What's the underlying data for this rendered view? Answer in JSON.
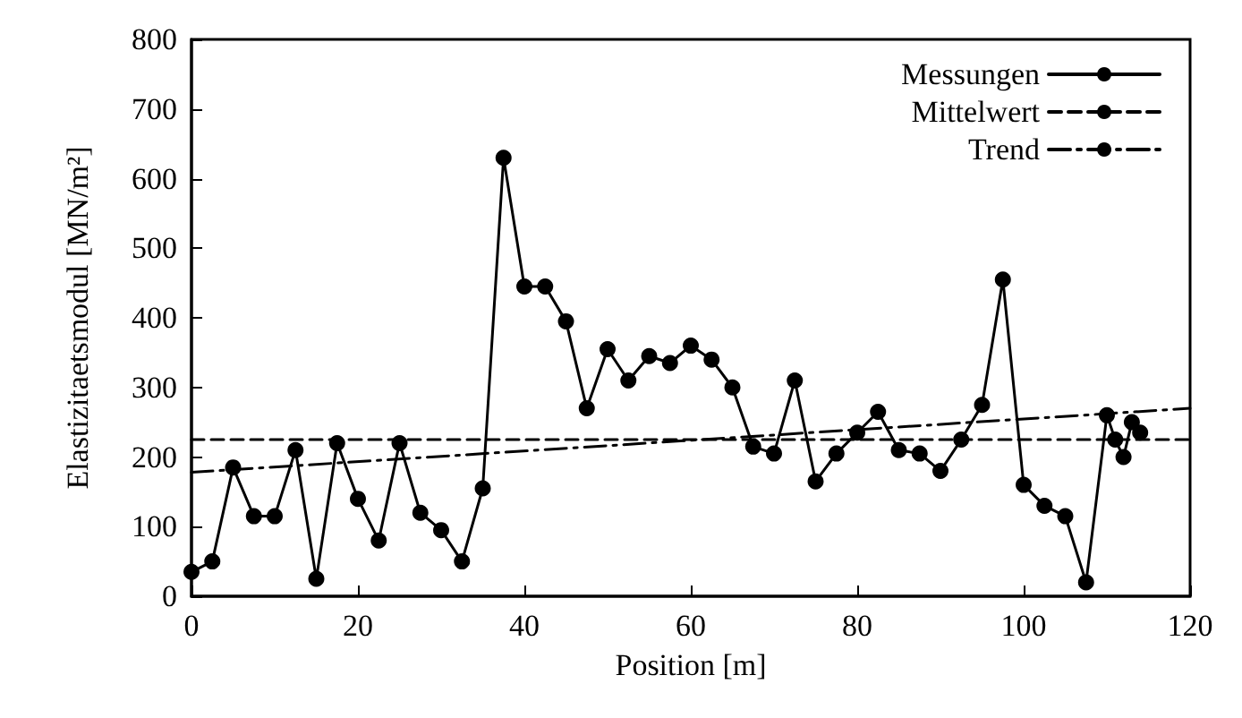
{
  "chart_data": {
    "type": "line",
    "xlabel": "Position [m]",
    "ylabel": "Elastizitaetsmodul [MN/m²]",
    "xlim": [
      0,
      120
    ],
    "xticks": [
      0,
      20,
      40,
      60,
      80,
      100,
      120
    ],
    "ylim": [
      0,
      800
    ],
    "yticks": [
      0,
      100,
      200,
      300,
      400,
      500,
      600,
      700,
      800
    ],
    "grid": false,
    "legend": "top right",
    "series": [
      {
        "name": "Messungen",
        "color": "#000000",
        "marker": "circle",
        "line_style": "solid",
        "x": [
          0,
          2.5,
          5,
          7.5,
          10,
          12.5,
          15,
          17.5,
          20,
          22.5,
          25,
          27.5,
          30,
          32.5,
          35,
          37.5,
          40,
          42.5,
          45,
          47.5,
          50,
          52.5,
          55,
          57.5,
          60,
          62.5,
          65,
          67.5,
          70,
          72.5,
          75,
          77.5,
          80,
          82.5,
          85,
          87.5,
          90,
          92.5,
          95,
          97.5,
          100,
          102.5,
          105,
          107.5,
          110,
          111,
          112,
          113,
          114
        ],
        "values": [
          35,
          50,
          185,
          115,
          115,
          210,
          25,
          220,
          140,
          80,
          220,
          120,
          95,
          50,
          155,
          630,
          445,
          445,
          395,
          270,
          355,
          310,
          345,
          335,
          360,
          340,
          300,
          215,
          205,
          310,
          165,
          205,
          235,
          265,
          210,
          205,
          180,
          225,
          275,
          455,
          160,
          130,
          115,
          20,
          260,
          225,
          200,
          250,
          235
        ]
      },
      {
        "name": "Mittelwert",
        "color": "#000000",
        "marker": "none",
        "line_style": "dashed",
        "x": [
          0,
          120
        ],
        "values": [
          225,
          225
        ]
      },
      {
        "name": "Trend",
        "color": "#000000",
        "marker": "none",
        "line_style": "dashdot",
        "x": [
          0,
          120
        ],
        "values": [
          178,
          270
        ]
      }
    ]
  }
}
